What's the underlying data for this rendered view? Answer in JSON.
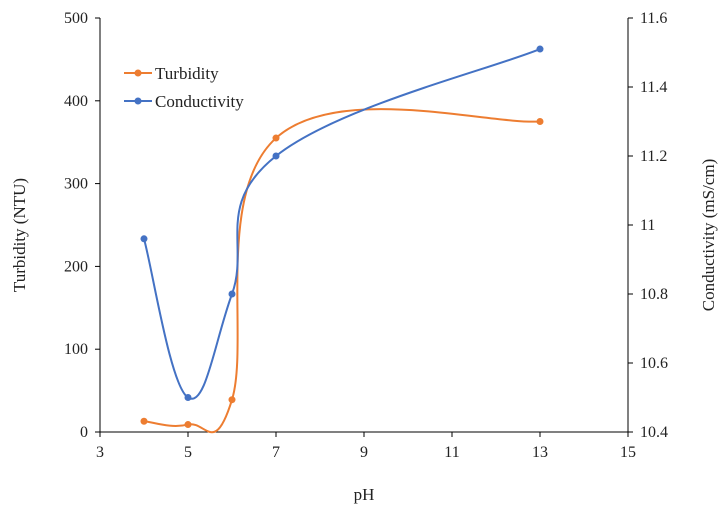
{
  "chart_data": {
    "type": "line",
    "x": [
      4,
      5,
      6,
      7,
      13
    ],
    "xlabel": "pH",
    "xlim": [
      3,
      15
    ],
    "xticks": [
      3,
      5,
      7,
      9,
      11,
      13,
      15
    ],
    "ylabel_left": "Turbidity (NTU)",
    "ylim_left": [
      0,
      500
    ],
    "yticks_left": [
      0,
      100,
      200,
      300,
      400,
      500
    ],
    "ylabel_right": "Conductivity (mS/cm)",
    "ylim_right": [
      10.4,
      11.6
    ],
    "yticks_right": [
      "10.4",
      "10.6",
      "10.8",
      "11",
      "11.2",
      "11.4",
      "11.6"
    ],
    "grid": false,
    "legend_position": "top-left",
    "series": [
      {
        "name": "Turbidity",
        "axis": "left",
        "color": "#ED7D31",
        "values": [
          13,
          9,
          39,
          355,
          375
        ]
      },
      {
        "name": "Conductivity",
        "axis": "right",
        "color": "#4472C4",
        "values": [
          10.96,
          10.5,
          10.8,
          11.2,
          11.51
        ]
      }
    ]
  }
}
